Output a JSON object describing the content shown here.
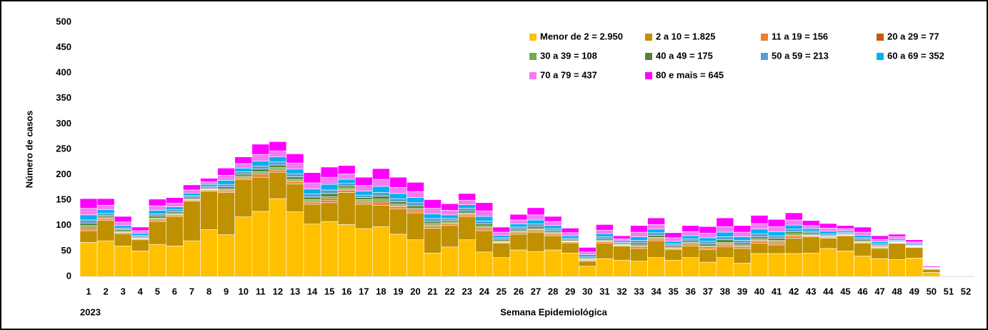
{
  "chart_data": {
    "type": "stacked-bar",
    "y_label": "Número de casos",
    "x_label": "Semana Epidemiológica",
    "year_label": "2023",
    "categories": [
      "1",
      "2",
      "3",
      "4",
      "5",
      "6",
      "7",
      "8",
      "9",
      "10",
      "11",
      "12",
      "13",
      "14",
      "15",
      "16",
      "17",
      "18",
      "19",
      "20",
      "21",
      "22",
      "23",
      "24",
      "25",
      "26",
      "27",
      "28",
      "29",
      "30",
      "31",
      "32",
      "33",
      "34",
      "35",
      "36",
      "37",
      "38",
      "39",
      "40",
      "41",
      "42",
      "43",
      "44",
      "45",
      "46",
      "47",
      "48",
      "49",
      "50",
      "51",
      "52"
    ],
    "ylim": [
      0,
      500
    ],
    "yticks": [
      0,
      50,
      100,
      150,
      200,
      250,
      300,
      350,
      400,
      450,
      500
    ],
    "grid": false,
    "legend": "top-right",
    "series": [
      {
        "name": "Menor de 2 = 2.950",
        "color": "#FFC000",
        "values": [
          67,
          70,
          60,
          50,
          63,
          60,
          70,
          92,
          82,
          117,
          128,
          153,
          127,
          103,
          108,
          102,
          94,
          98,
          83,
          72,
          46,
          58,
          72,
          48,
          37,
          52,
          49,
          52,
          46,
          20,
          35,
          32,
          30,
          37,
          32,
          37,
          28,
          37,
          26,
          45,
          45,
          45,
          46,
          55,
          50,
          40,
          35,
          33,
          36,
          8,
          null,
          null
        ]
      },
      {
        "name": "2 a 10 = 1.825",
        "color": "#BF9000",
        "values": [
          23,
          40,
          24,
          22,
          45,
          58,
          78,
          76,
          83,
          73,
          67,
          52,
          55,
          39,
          37,
          63,
          48,
          42,
          50,
          53,
          49,
          42,
          46,
          42,
          28,
          31,
          38,
          28,
          20,
          10,
          30,
          28,
          25,
          33,
          21,
          23,
          25,
          21,
          29,
          20,
          17,
          30,
          32,
          20,
          30,
          25,
          20,
          32,
          21,
          6,
          null,
          null
        ]
      },
      {
        "name": "11 a 19 = 156",
        "color": "#ED7D31",
        "values": [
          4,
          3,
          2,
          2,
          3,
          3,
          2,
          2,
          3,
          3,
          5,
          4,
          4,
          4,
          5,
          4,
          4,
          5,
          4,
          4,
          4,
          3,
          3,
          4,
          2,
          3,
          3,
          3,
          2,
          2,
          3,
          1,
          3,
          3,
          2,
          3,
          3,
          4,
          3,
          4,
          4,
          4,
          2,
          2,
          1,
          2,
          2,
          1,
          1,
          0,
          null,
          null
        ]
      },
      {
        "name": "20 a 29 = 77",
        "color": "#C55A11",
        "values": [
          3,
          2,
          1,
          1,
          2,
          1,
          1,
          1,
          2,
          2,
          3,
          2,
          2,
          2,
          3,
          2,
          2,
          3,
          2,
          2,
          2,
          2,
          2,
          2,
          1,
          2,
          2,
          2,
          1,
          1,
          1,
          1,
          2,
          2,
          1,
          2,
          2,
          2,
          2,
          2,
          2,
          2,
          1,
          1,
          1,
          1,
          1,
          1,
          1,
          0,
          null,
          null
        ]
      },
      {
        "name": "30 a 39 = 108",
        "color": "#70AD47",
        "values": [
          3,
          2,
          2,
          1,
          2,
          2,
          2,
          1,
          2,
          2,
          3,
          3,
          3,
          3,
          4,
          3,
          3,
          4,
          3,
          3,
          3,
          2,
          2,
          3,
          2,
          2,
          2,
          2,
          1,
          1,
          2,
          1,
          2,
          2,
          2,
          2,
          2,
          3,
          2,
          3,
          3,
          3,
          2,
          1,
          1,
          2,
          1,
          1,
          1,
          0,
          null,
          null
        ]
      },
      {
        "name": "40 a 49 = 175",
        "color": "#548235",
        "values": [
          5,
          3,
          3,
          2,
          4,
          3,
          3,
          2,
          4,
          4,
          5,
          5,
          5,
          5,
          6,
          4,
          4,
          6,
          5,
          5,
          4,
          3,
          4,
          4,
          3,
          3,
          4,
          3,
          2,
          2,
          3,
          2,
          4,
          4,
          3,
          3,
          4,
          5,
          4,
          4,
          4,
          4,
          3,
          2,
          2,
          3,
          2,
          1,
          1,
          1,
          null,
          null
        ]
      },
      {
        "name": "50 a 59 = 213",
        "color": "#5B9BD5",
        "values": [
          6,
          4,
          3,
          3,
          4,
          4,
          3,
          3,
          5,
          5,
          6,
          6,
          6,
          6,
          7,
          5,
          5,
          7,
          6,
          6,
          6,
          4,
          5,
          6,
          3,
          4,
          5,
          4,
          3,
          3,
          4,
          2,
          5,
          5,
          3,
          4,
          5,
          6,
          5,
          6,
          5,
          5,
          3,
          3,
          2,
          3,
          3,
          2,
          2,
          1,
          null,
          null
        ]
      },
      {
        "name": "60 a 69 = 352",
        "color": "#00B0F0",
        "values": [
          10,
          7,
          5,
          4,
          7,
          6,
          5,
          4,
          8,
          7,
          10,
          10,
          9,
          10,
          11,
          8,
          8,
          12,
          10,
          10,
          9,
          7,
          7,
          9,
          5,
          6,
          8,
          6,
          5,
          4,
          6,
          3,
          7,
          7,
          5,
          6,
          7,
          9,
          7,
          9,
          8,
          8,
          5,
          5,
          3,
          5,
          4,
          3,
          2,
          1,
          null,
          null
        ]
      },
      {
        "name": "70 a 79 = 437",
        "color": "#F37CF3",
        "values": [
          13,
          9,
          7,
          5,
          9,
          7,
          6,
          5,
          10,
          9,
          13,
          12,
          12,
          12,
          14,
          11,
          11,
          14,
          12,
          12,
          11,
          9,
          9,
          11,
          6,
          8,
          10,
          8,
          6,
          5,
          7,
          4,
          9,
          9,
          7,
          8,
          9,
          11,
          9,
          11,
          10,
          10,
          6,
          6,
          4,
          6,
          5,
          4,
          3,
          1,
          null,
          null
        ]
      },
      {
        "name": "80 e mais = 645",
        "color": "#FF00FF",
        "values": [
          19,
          13,
          11,
          7,
          13,
          11,
          10,
          7,
          14,
          13,
          20,
          18,
          18,
          20,
          20,
          16,
          16,
          21,
          20,
          18,
          17,
          13,
          13,
          16,
          10,
          11,
          14,
          10,
          9,
          9,
          11,
          6,
          13,
          13,
          10,
          12,
          13,
          17,
          13,
          16,
          14,
          14,
          10,
          9,
          6,
          10,
          7,
          5,
          4,
          2,
          null,
          null
        ]
      }
    ]
  }
}
